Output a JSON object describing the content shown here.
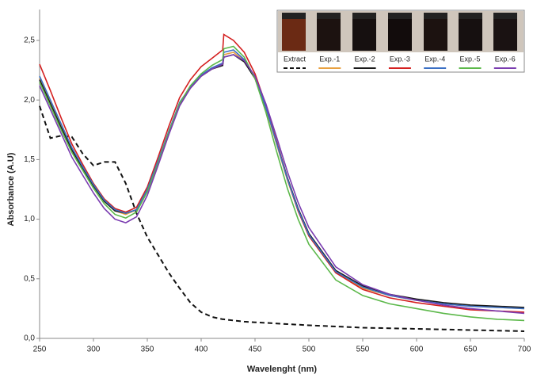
{
  "chart_data": {
    "type": "line",
    "x_label": "Wavelenght (nm)",
    "y_label": "Absorbance (A.U)",
    "xlim": [
      250,
      700
    ],
    "xticks": [
      250,
      300,
      350,
      400,
      450,
      500,
      550,
      600,
      650,
      700
    ],
    "ylim": [
      0,
      2.5
    ],
    "yticks": [
      {
        "value": 0,
        "label": "0,0"
      },
      {
        "value": 0.5,
        "label": "0,5"
      },
      {
        "value": 1,
        "label": "1,0"
      },
      {
        "value": 1.5,
        "label": "1,5"
      },
      {
        "value": 2,
        "label": "2,0"
      },
      {
        "value": 2.5,
        "label": "2,5"
      }
    ],
    "x": [
      250,
      260,
      270,
      280,
      290,
      300,
      310,
      320,
      330,
      340,
      350,
      360,
      370,
      380,
      390,
      400,
      410,
      420,
      421,
      430,
      440,
      450,
      460,
      470,
      480,
      490,
      500,
      525,
      550,
      575,
      600,
      625,
      650,
      675,
      700
    ],
    "series": [
      {
        "name": "Extract",
        "color": "#111111",
        "dashed": true,
        "values": [
          1.95,
          1.68,
          1.7,
          1.69,
          1.55,
          1.45,
          1.48,
          1.48,
          1.3,
          1.05,
          0.85,
          0.7,
          0.55,
          0.42,
          0.3,
          0.22,
          0.18,
          0.16,
          0.16,
          0.15,
          0.14,
          0.135,
          0.13,
          0.125,
          0.12,
          0.115,
          0.11,
          0.1,
          0.09,
          0.085,
          0.08,
          0.075,
          0.07,
          0.065,
          0.06
        ]
      },
      {
        "name": "Exp.-1",
        "color": "#e8a040",
        "values": [
          2.18,
          1.98,
          1.78,
          1.58,
          1.43,
          1.28,
          1.15,
          1.07,
          1.04,
          1.08,
          1.24,
          1.48,
          1.73,
          1.96,
          2.1,
          2.2,
          2.26,
          2.3,
          2.38,
          2.4,
          2.33,
          2.18,
          1.93,
          1.63,
          1.33,
          1.07,
          0.86,
          0.55,
          0.42,
          0.36,
          0.32,
          0.29,
          0.27,
          0.26,
          0.25
        ]
      },
      {
        "name": "Exp.-2",
        "color": "#1a1a1a",
        "values": [
          2.17,
          1.97,
          1.77,
          1.58,
          1.43,
          1.28,
          1.15,
          1.07,
          1.05,
          1.08,
          1.24,
          1.48,
          1.73,
          1.96,
          2.1,
          2.2,
          2.26,
          2.29,
          2.36,
          2.38,
          2.32,
          2.18,
          1.94,
          1.65,
          1.35,
          1.09,
          0.88,
          0.57,
          0.44,
          0.37,
          0.33,
          0.3,
          0.28,
          0.27,
          0.26
        ]
      },
      {
        "name": "Exp.-3",
        "color": "#d42020",
        "values": [
          2.3,
          2.08,
          1.85,
          1.63,
          1.46,
          1.3,
          1.17,
          1.09,
          1.06,
          1.1,
          1.27,
          1.52,
          1.78,
          2.02,
          2.17,
          2.28,
          2.35,
          2.42,
          2.55,
          2.5,
          2.4,
          2.22,
          1.96,
          1.65,
          1.34,
          1.07,
          0.86,
          0.55,
          0.41,
          0.34,
          0.3,
          0.27,
          0.24,
          0.23,
          0.22
        ]
      },
      {
        "name": "Exp.-4",
        "color": "#3a6fc4",
        "values": [
          2.2,
          2.0,
          1.8,
          1.6,
          1.44,
          1.29,
          1.16,
          1.08,
          1.05,
          1.08,
          1.25,
          1.49,
          1.74,
          1.98,
          2.11,
          2.21,
          2.27,
          2.31,
          2.4,
          2.42,
          2.34,
          2.19,
          1.94,
          1.64,
          1.34,
          1.08,
          0.87,
          0.56,
          0.43,
          0.36,
          0.32,
          0.29,
          0.27,
          0.26,
          0.25
        ]
      },
      {
        "name": "Exp.-5",
        "color": "#5cb84a",
        "values": [
          2.15,
          1.95,
          1.75,
          1.56,
          1.41,
          1.26,
          1.13,
          1.04,
          1.01,
          1.06,
          1.23,
          1.47,
          1.73,
          1.97,
          2.12,
          2.22,
          2.29,
          2.34,
          2.43,
          2.45,
          2.36,
          2.18,
          1.9,
          1.57,
          1.26,
          1.0,
          0.79,
          0.49,
          0.36,
          0.29,
          0.25,
          0.21,
          0.18,
          0.16,
          0.15
        ]
      },
      {
        "name": "Exp.-6",
        "color": "#7a3cb0",
        "values": [
          2.12,
          1.92,
          1.72,
          1.52,
          1.37,
          1.22,
          1.09,
          1.0,
          0.97,
          1.02,
          1.2,
          1.45,
          1.71,
          1.95,
          2.1,
          2.2,
          2.26,
          2.3,
          2.36,
          2.38,
          2.33,
          2.2,
          1.97,
          1.69,
          1.4,
          1.14,
          0.93,
          0.6,
          0.45,
          0.37,
          0.32,
          0.28,
          0.25,
          0.23,
          0.21
        ]
      }
    ]
  }
}
